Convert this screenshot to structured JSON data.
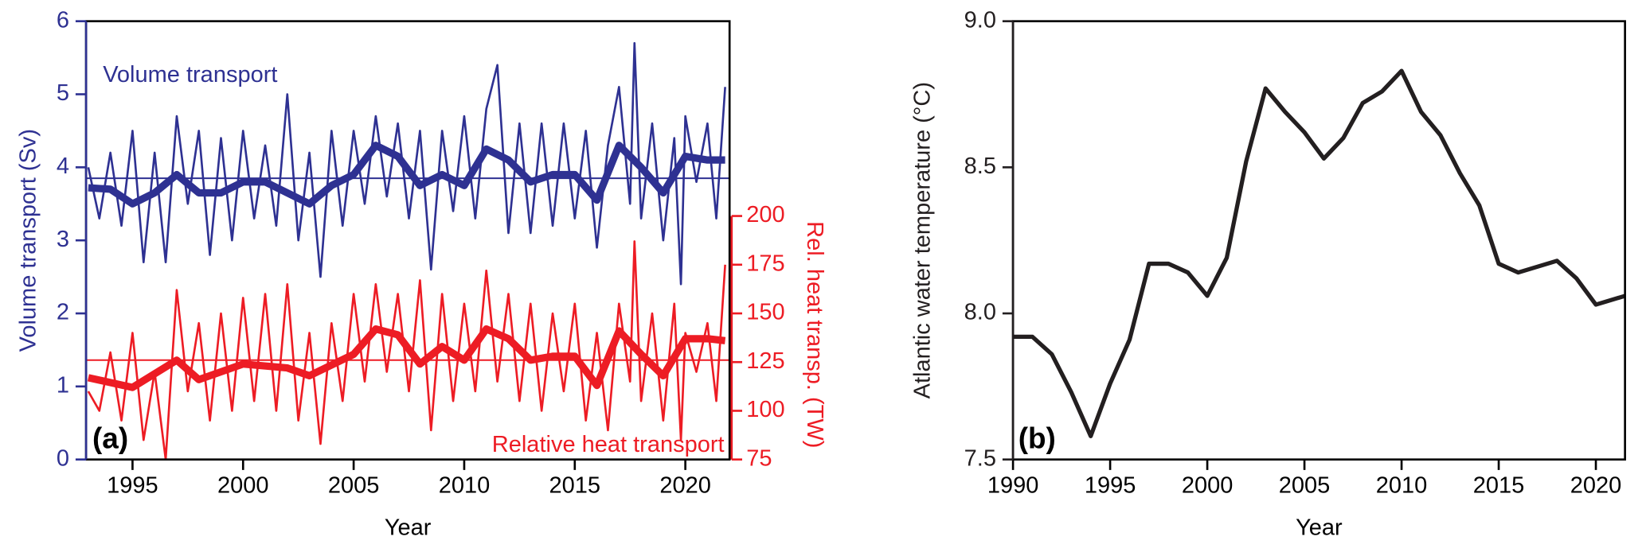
{
  "chart_data": [
    {
      "type": "line",
      "panel": "(a)",
      "x_label": "Year",
      "y_label": "Volume transport (Sv)",
      "y2_label": "Rel. heat transp. (TW)",
      "annotations": [
        "Volume transport",
        "Relative heat transport"
      ],
      "xlim": [
        1992.9,
        2022
      ],
      "xticks": [
        1995,
        2000,
        2005,
        2010,
        2015,
        2020
      ],
      "ylim": [
        0,
        6
      ],
      "yticks": [
        0,
        1,
        2,
        3,
        4,
        5,
        6
      ],
      "y2lim": [
        75,
        300
      ],
      "y2ticks": [
        75,
        100,
        125,
        150,
        175,
        200
      ],
      "reference_lines": [
        {
          "value": 3.85,
          "color": "#2e3192"
        },
        {
          "value": 126,
          "axis": "y2",
          "color": "#ed1c24"
        }
      ],
      "series": [
        {
          "name": "Volume transport",
          "color": "#2e3192",
          "x": [
            1993,
            1993.5,
            1994,
            1994.5,
            1995,
            1995.5,
            1996,
            1996.5,
            1997,
            1997.5,
            1998,
            1998.5,
            1999,
            1999.5,
            2000,
            2000.5,
            2001,
            2001.5,
            2002,
            2002.5,
            2003,
            2003.5,
            2004,
            2004.5,
            2005,
            2005.5,
            2006,
            2006.5,
            2007,
            2007.5,
            2008,
            2008.5,
            2009,
            2009.5,
            2010,
            2010.5,
            2011,
            2011.5,
            2012,
            2012.5,
            2013,
            2013.5,
            2014,
            2014.5,
            2015,
            2015.5,
            2016,
            2016.5,
            2017,
            2017.5,
            2017.7,
            2018,
            2018.5,
            2019,
            2019.5,
            2019.8,
            2020,
            2020.5,
            2021,
            2021.4,
            2021.8
          ],
          "values": [
            4.0,
            3.3,
            4.2,
            3.2,
            4.5,
            2.7,
            4.2,
            2.7,
            4.7,
            3.5,
            4.5,
            2.8,
            4.4,
            3.0,
            4.5,
            3.3,
            4.3,
            3.2,
            5.0,
            3.0,
            4.2,
            2.5,
            4.5,
            3.2,
            4.5,
            3.5,
            4.7,
            3.6,
            4.6,
            3.3,
            4.5,
            2.6,
            4.5,
            3.4,
            4.7,
            3.3,
            4.8,
            5.4,
            3.1,
            4.6,
            3.1,
            4.6,
            3.2,
            4.6,
            3.3,
            4.5,
            2.9,
            4.3,
            5.1,
            3.5,
            5.7,
            3.3,
            4.6,
            3.0,
            4.4,
            2.4,
            4.7,
            3.8,
            4.6,
            3.3,
            5.1
          ]
        },
        {
          "color": "#2e3192",
          "x": [
            1993,
            1994,
            1995,
            1996,
            1997,
            1998,
            1999,
            2000,
            2001,
            2002,
            2003,
            2004,
            2005,
            2006,
            2007,
            2008,
            2009,
            2010,
            2011,
            2012,
            2013,
            2014,
            2015,
            2016,
            2017,
            2018,
            2019,
            2020,
            2021,
            2021.8
          ],
          "values": [
            3.72,
            3.7,
            3.5,
            3.65,
            3.9,
            3.65,
            3.65,
            3.8,
            3.8,
            3.65,
            3.5,
            3.75,
            3.9,
            4.3,
            4.15,
            3.75,
            3.9,
            3.75,
            4.25,
            4.1,
            3.8,
            3.9,
            3.9,
            3.55,
            4.3,
            4.0,
            3.65,
            4.15,
            4.1,
            4.1
          ]
        },
        {
          "name": "Relative heat transport",
          "color": "#ed1c24",
          "axis": "y2",
          "x": [
            1993,
            1993.5,
            1994,
            1994.5,
            1995,
            1995.5,
            1996,
            1996.5,
            1997,
            1997.5,
            1998,
            1998.5,
            1999,
            1999.5,
            2000,
            2000.5,
            2001,
            2001.5,
            2002,
            2002.5,
            2003,
            2003.5,
            2004,
            2004.5,
            2005,
            2005.5,
            2006,
            2006.5,
            2007,
            2007.5,
            2008,
            2008.5,
            2009,
            2009.5,
            2010,
            2010.5,
            2011,
            2011.5,
            2012,
            2012.5,
            2013,
            2013.5,
            2014,
            2014.5,
            2015,
            2015.5,
            2016,
            2016.5,
            2017,
            2017.5,
            2017.7,
            2018,
            2018.5,
            2019,
            2019.5,
            2019.8,
            2020,
            2020.5,
            2021,
            2021.4,
            2021.8
          ],
          "values": [
            110,
            100,
            130,
            95,
            140,
            85,
            120,
            75,
            162,
            110,
            145,
            95,
            150,
            100,
            158,
            105,
            160,
            100,
            165,
            95,
            140,
            83,
            145,
            105,
            160,
            115,
            165,
            120,
            160,
            110,
            167,
            90,
            160,
            105,
            155,
            110,
            172,
            115,
            160,
            105,
            155,
            100,
            150,
            110,
            155,
            95,
            140,
            90,
            155,
            115,
            187,
            105,
            150,
            95,
            155,
            85,
            140,
            120,
            145,
            105,
            175
          ]
        },
        {
          "color": "#ed1c24",
          "axis": "y2",
          "x": [
            1993,
            1995,
            1997,
            1998,
            2000,
            2002,
            2003,
            2005,
            2006,
            2007,
            2008,
            2009,
            2010,
            2011,
            2012,
            2013,
            2014,
            2015,
            2016,
            2017,
            2018,
            2019,
            2020,
            2021,
            2021.8
          ],
          "values": [
            117,
            112,
            126,
            116,
            124,
            122,
            118,
            129,
            142,
            139,
            124,
            133,
            126,
            142,
            137,
            126,
            128,
            128,
            113,
            141,
            129,
            118,
            137,
            137,
            136
          ]
        }
      ]
    },
    {
      "type": "line",
      "panel": "(b)",
      "x_label": "Year",
      "y_label": "Atlantic water temperature (°C)",
      "xlim": [
        1990,
        2021.5
      ],
      "xticks": [
        1990,
        1995,
        2000,
        2005,
        2010,
        2015,
        2020
      ],
      "ylim": [
        7.5,
        9.0
      ],
      "yticks": [
        7.5,
        {
          "value": 8,
          "label": "8.0"
        },
        8.5,
        {
          "value": 9,
          "label": "9.0"
        }
      ],
      "series": [
        {
          "color": "#231f20",
          "x": [
            1990,
            1991,
            1992,
            1993,
            1994,
            1995,
            1996,
            1997,
            1998,
            1999,
            2000,
            2001,
            2002,
            2003,
            2004,
            2005,
            2006,
            2007,
            2008,
            2009,
            2010,
            2011,
            2012,
            2013,
            2014,
            2015,
            2016,
            2017,
            2018,
            2019,
            2020,
            2021.5
          ],
          "values": [
            7.92,
            7.92,
            7.86,
            7.73,
            7.58,
            7.76,
            7.91,
            8.17,
            8.17,
            8.14,
            8.06,
            8.19,
            8.52,
            8.77,
            8.69,
            8.62,
            8.53,
            8.6,
            8.72,
            8.76,
            8.83,
            8.69,
            8.61,
            8.48,
            8.37,
            8.17,
            8.14,
            8.16,
            8.18,
            8.12,
            8.03,
            8.06
          ]
        }
      ]
    }
  ]
}
